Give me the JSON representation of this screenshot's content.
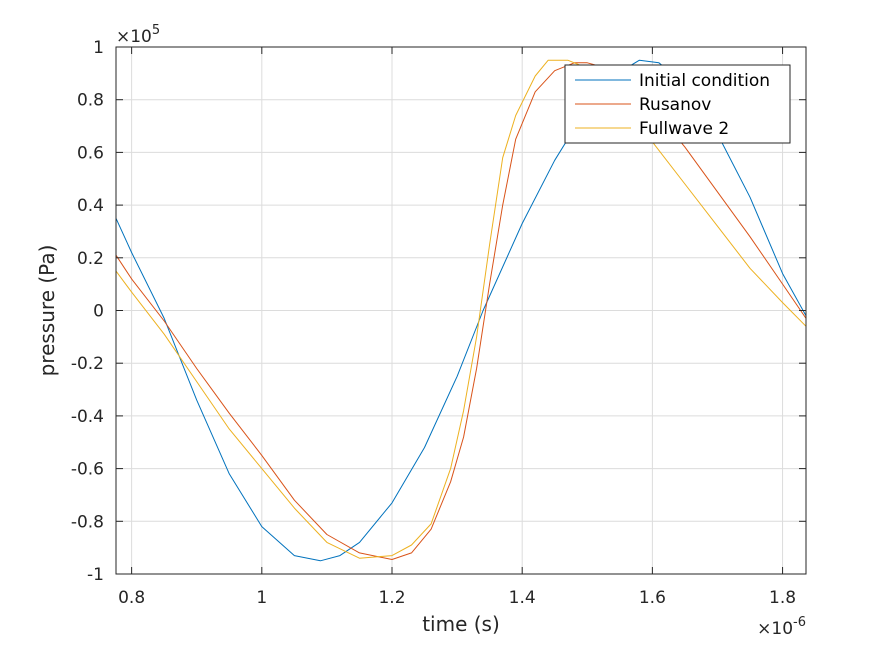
{
  "chart_data": {
    "type": "line",
    "title": "",
    "xlabel": "time (s)",
    "ylabel": "pressure (Pa)",
    "x_exponent_label": "×10",
    "x_exponent": "-6",
    "y_exponent_label": "×10",
    "y_exponent": "5",
    "xlim": [
      0.776,
      1.836
    ],
    "ylim": [
      -1,
      1
    ],
    "x_ticks": [
      0.8,
      1,
      1.2,
      1.4,
      1.6,
      1.8
    ],
    "x_tick_labels": [
      "0.8",
      "1",
      "1.2",
      "1.4",
      "1.6",
      "1.8"
    ],
    "y_ticks": [
      -1,
      -0.8,
      -0.6,
      -0.4,
      -0.2,
      0,
      0.2,
      0.4,
      0.6,
      0.8,
      1
    ],
    "y_tick_labels": [
      "-1",
      "-0.8",
      "-0.6",
      "-0.4",
      "-0.2",
      "0",
      "0.2",
      "0.4",
      "0.6",
      "0.8",
      "1"
    ],
    "grid": true,
    "legend_position": "top-right",
    "series": [
      {
        "name": "Initial condition",
        "color": "#0072BD",
        "x": [
          0.776,
          0.8,
          0.85,
          0.9,
          0.95,
          1.0,
          1.05,
          1.09,
          1.12,
          1.15,
          1.2,
          1.25,
          1.3,
          1.34,
          1.4,
          1.45,
          1.5,
          1.54,
          1.58,
          1.61,
          1.65,
          1.7,
          1.75,
          1.8,
          1.836
        ],
        "y": [
          0.35,
          0.22,
          -0.03,
          -0.34,
          -0.62,
          -0.82,
          -0.93,
          -0.95,
          -0.93,
          -0.88,
          -0.73,
          -0.52,
          -0.25,
          0.0,
          0.33,
          0.57,
          0.77,
          0.89,
          0.95,
          0.94,
          0.86,
          0.67,
          0.43,
          0.14,
          -0.02
        ]
      },
      {
        "name": "Rusanov",
        "color": "#D95319",
        "x": [
          0.776,
          0.8,
          0.85,
          0.9,
          0.95,
          1.0,
          1.05,
          1.1,
          1.15,
          1.2,
          1.23,
          1.26,
          1.29,
          1.31,
          1.33,
          1.35,
          1.37,
          1.39,
          1.42,
          1.45,
          1.48,
          1.5,
          1.53,
          1.56,
          1.6,
          1.65,
          1.7,
          1.75,
          1.8,
          1.836
        ],
        "y": [
          0.21,
          0.12,
          -0.04,
          -0.22,
          -0.39,
          -0.55,
          -0.72,
          -0.85,
          -0.92,
          -0.945,
          -0.92,
          -0.83,
          -0.65,
          -0.48,
          -0.22,
          0.1,
          0.4,
          0.65,
          0.83,
          0.91,
          0.94,
          0.94,
          0.92,
          0.86,
          0.77,
          0.62,
          0.45,
          0.28,
          0.1,
          -0.03
        ]
      },
      {
        "name": "Fullwave 2",
        "color": "#EDB120",
        "x": [
          0.776,
          0.8,
          0.85,
          0.9,
          0.95,
          1.0,
          1.05,
          1.1,
          1.15,
          1.2,
          1.23,
          1.26,
          1.29,
          1.31,
          1.33,
          1.35,
          1.37,
          1.39,
          1.42,
          1.44,
          1.47,
          1.5,
          1.53,
          1.56,
          1.6,
          1.65,
          1.7,
          1.75,
          1.8,
          1.836
        ],
        "y": [
          0.15,
          0.07,
          -0.09,
          -0.27,
          -0.45,
          -0.6,
          -0.75,
          -0.88,
          -0.94,
          -0.93,
          -0.89,
          -0.81,
          -0.6,
          -0.38,
          -0.1,
          0.25,
          0.58,
          0.74,
          0.89,
          0.95,
          0.95,
          0.92,
          0.85,
          0.77,
          0.64,
          0.48,
          0.32,
          0.16,
          0.03,
          -0.06
        ]
      }
    ]
  }
}
